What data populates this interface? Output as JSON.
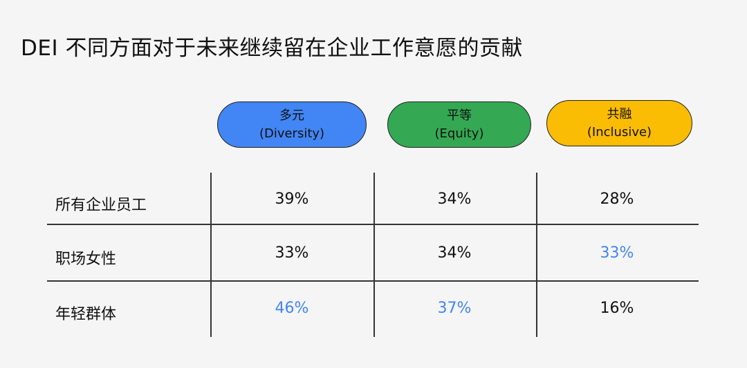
{
  "title": "DEI 不同方面对于未来继续留在企业工作意愿的贡献",
  "colors": {
    "diversity": "#4285f4",
    "equity": "#34a853",
    "inclusive": "#fbbc04",
    "highlight_text": "#4285f4",
    "normal_text": "#111111"
  },
  "chart_data": {
    "type": "table",
    "columns": [
      {
        "line1": "多元",
        "line2": "(Diversity)"
      },
      {
        "line1": "平等",
        "line2": "(Equity)"
      },
      {
        "line1": "共融",
        "line2": "(Inclusive)"
      }
    ],
    "rows": [
      {
        "label": "所有企业员工",
        "values": [
          "39%",
          "34%",
          "28%"
        ],
        "highlight": [
          false,
          false,
          false
        ]
      },
      {
        "label": "职场女性",
        "values": [
          "33%",
          "34%",
          "33%"
        ],
        "highlight": [
          false,
          false,
          true
        ]
      },
      {
        "label": "年轻群体",
        "values": [
          "46%",
          "37%",
          "16%"
        ],
        "highlight": [
          true,
          true,
          false
        ]
      }
    ]
  }
}
